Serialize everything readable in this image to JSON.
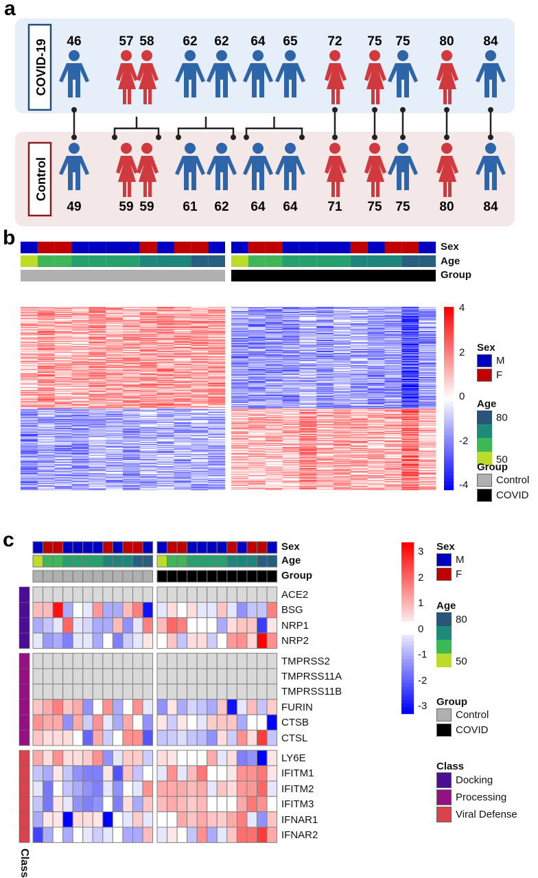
{
  "panel_labels": {
    "a": "a",
    "b": "b",
    "c": "c"
  },
  "panel_a": {
    "covid_label": "COVID-19",
    "control_label": "Control",
    "colors": {
      "male": "#2e64a8",
      "female": "#d03a3e",
      "covid_box": "#e6eef9",
      "control_box": "#f3e7e7",
      "covid_border": "#1f4e79",
      "control_border": "#8b1a1a"
    },
    "covid": [
      {
        "age": "46",
        "sex": "M"
      },
      {
        "age": "57",
        "sex": "F"
      },
      {
        "age": "58",
        "sex": "F"
      },
      {
        "age": "62",
        "sex": "M"
      },
      {
        "age": "62",
        "sex": "M"
      },
      {
        "age": "64",
        "sex": "M"
      },
      {
        "age": "65",
        "sex": "M"
      },
      {
        "age": "72",
        "sex": "F"
      },
      {
        "age": "75",
        "sex": "F"
      },
      {
        "age": "75",
        "sex": "M"
      },
      {
        "age": "80",
        "sex": "F"
      },
      {
        "age": "84",
        "sex": "M"
      }
    ],
    "control": [
      {
        "age": "49",
        "sex": "M"
      },
      {
        "age": "59",
        "sex": "F"
      },
      {
        "age": "59",
        "sex": "F"
      },
      {
        "age": "61",
        "sex": "M"
      },
      {
        "age": "62",
        "sex": "M"
      },
      {
        "age": "64",
        "sex": "M"
      },
      {
        "age": "64",
        "sex": "M"
      },
      {
        "age": "71",
        "sex": "F"
      },
      {
        "age": "75",
        "sex": "F"
      },
      {
        "age": "75",
        "sex": "M"
      },
      {
        "age": "80",
        "sex": "F"
      },
      {
        "age": "84",
        "sex": "M"
      }
    ]
  },
  "annotations": {
    "sex": "Sex",
    "age": "Age",
    "group": "Group",
    "class": "Class"
  },
  "legend": {
    "sex_title": "Sex",
    "sex_items": [
      {
        "label": "M",
        "color": "#0000c0"
      },
      {
        "label": "F",
        "color": "#c00000"
      }
    ],
    "age_title": "Age",
    "age_ticks": [
      "80",
      "50"
    ],
    "age_colors": [
      "#2b5578",
      "#1f8a7a",
      "#3cb957",
      "#bddb2a"
    ],
    "group_title": "Group",
    "group_items": [
      {
        "label": "Control",
        "color": "#b0b0b0"
      },
      {
        "label": "COVID",
        "color": "#000000"
      }
    ],
    "class_title": "Class",
    "class_items": [
      {
        "label": "Docking",
        "color": "#4b0c96"
      },
      {
        "label": "Processing",
        "color": "#951181"
      },
      {
        "label": "Viral Defense",
        "color": "#d9434d"
      }
    ]
  },
  "chart_data": [
    {
      "panel": "b",
      "type": "heatmap",
      "colorbar": {
        "ticks": [
          "4",
          "2",
          "0",
          "-2",
          "-4"
        ],
        "range": [
          -4,
          4
        ],
        "low": "#0000ff",
        "mid": "#ffffff",
        "high": "#ff0000"
      },
      "groups": [
        "Control",
        "COVID"
      ]
    },
    {
      "panel": "c",
      "type": "heatmap",
      "colorbar": {
        "ticks": [
          "3",
          "2",
          "1",
          "0",
          "-1",
          "-2",
          "-3"
        ],
        "range": [
          -3,
          3
        ]
      },
      "na_color": "#d9d9d9",
      "columns": {
        "control": {
          "sex": [
            "M",
            "F",
            "F",
            "M",
            "M",
            "M",
            "M",
            "F",
            "M",
            "F",
            "F",
            "M"
          ],
          "age": [
            49,
            59,
            59,
            61,
            62,
            64,
            64,
            71,
            75,
            75,
            80,
            84
          ]
        },
        "covid": {
          "sex": [
            "M",
            "F",
            "F",
            "M",
            "M",
            "M",
            "M",
            "F",
            "M",
            "F",
            "F",
            "M"
          ],
          "age": [
            46,
            57,
            58,
            62,
            62,
            64,
            65,
            72,
            75,
            75,
            80,
            84
          ]
        }
      },
      "rows": [
        {
          "gene": "ACE2",
          "class": "Docking",
          "control": null,
          "covid": null
        },
        {
          "gene": "BSG",
          "class": "Docking",
          "control": [
            0.8,
            0.8,
            2.8,
            -1,
            0,
            -0.3,
            1.2,
            -1,
            -1,
            0.8,
            1.5,
            -2.8
          ],
          "covid": [
            -0.3,
            0.4,
            0,
            0.4,
            -0.3,
            -0.3,
            0.7,
            -0.3,
            -1.3,
            -0.7,
            -0.7,
            1.5
          ]
        },
        {
          "gene": "NRP1",
          "class": "Docking",
          "control": [
            -1,
            -0.7,
            -0.3,
            1.8,
            -0.3,
            -0.5,
            -1,
            -1,
            0.8,
            -1.3,
            -0.3,
            1.5
          ],
          "covid": [
            0.8,
            1.8,
            1.5,
            0,
            0,
            0,
            -1,
            0.4,
            0.7,
            0.7,
            -2.3,
            0.3
          ]
        },
        {
          "gene": "NRP2",
          "class": "Docking",
          "control": [
            -0.3,
            -1.2,
            -1,
            -1.5,
            -0.3,
            -0.3,
            -1,
            0,
            -1.5,
            -0.6,
            -0.3,
            0.3
          ],
          "covid": [
            0,
            0.7,
            -0.7,
            0.4,
            0.4,
            -0.6,
            0,
            1.2,
            1.3,
            0.5,
            3,
            1.3
          ]
        },
        {
          "gene": "TMPRSS2",
          "class": "Processing",
          "control": null,
          "covid": null
        },
        {
          "gene": "TMPRSS11A",
          "class": "Processing",
          "control": null,
          "covid": null
        },
        {
          "gene": "TMPRSS11B",
          "class": "Processing",
          "control": null,
          "covid": null
        },
        {
          "gene": "FURIN",
          "class": "Processing",
          "control": [
            0.7,
            1,
            1.5,
            0.7,
            1,
            -1.3,
            0,
            1.3,
            -1,
            0,
            1.3,
            -0.3
          ],
          "covid": [
            -1.3,
            0.3,
            -1,
            -0.5,
            -0.7,
            -1,
            0.7,
            -2.8,
            -0.3,
            0.8,
            -0.7,
            0.6
          ]
        },
        {
          "gene": "CTSB",
          "class": "Processing",
          "control": [
            1.3,
            1,
            1,
            -1.3,
            1,
            -0.6,
            1.3,
            -0.3,
            -1,
            1,
            0,
            -1.3
          ],
          "covid": [
            0.3,
            -0.6,
            0.3,
            0,
            -0.3,
            0.6,
            0.7,
            0.7,
            -1,
            0,
            0,
            -3
          ]
        },
        {
          "gene": "CTSL",
          "class": "Processing",
          "control": [
            0.7,
            0.4,
            0.4,
            0.4,
            0,
            -1.8,
            1,
            -0.6,
            0,
            1.3,
            1.3,
            -2
          ],
          "covid": [
            -0.7,
            -0.6,
            -0.4,
            -0.7,
            -0.8,
            -1.3,
            0.4,
            -0.6,
            1.3,
            0.4,
            2.3,
            -0.7
          ]
        },
        {
          "gene": "LY6E",
          "class": "Viral Defense",
          "control": [
            1,
            0.4,
            1.3,
            0.4,
            0.4,
            0.6,
            1.3,
            -1.3,
            -0.3,
            0.6,
            0.6,
            -0.6
          ],
          "covid": [
            0.4,
            0.3,
            0,
            0,
            0,
            1,
            -0.3,
            0.4,
            -1.5,
            -1.3,
            -3,
            0.3
          ]
        },
        {
          "gene": "IFITM1",
          "class": "Viral Defense",
          "control": [
            -0.7,
            -1,
            0.3,
            -0.7,
            -1.3,
            -1.5,
            -1.5,
            0.3,
            -2,
            0.7,
            -0.7,
            0
          ],
          "covid": [
            -0.3,
            1.3,
            -0.3,
            0.8,
            1.6,
            0,
            0,
            0.3,
            1.3,
            1.3,
            1.6,
            0.3
          ]
        },
        {
          "gene": "IFITM2",
          "class": "Viral Defense",
          "control": [
            -0.3,
            -1.6,
            0,
            -0.7,
            -1,
            -1.3,
            -1.5,
            -0.3,
            -1.3,
            0,
            -0.3,
            1.3
          ],
          "covid": [
            1,
            1,
            1,
            0.8,
            1,
            -0.3,
            0.7,
            0.4,
            1.2,
            1.2,
            1.8,
            -0.3
          ]
        },
        {
          "gene": "IFITM3",
          "class": "Viral Defense",
          "control": [
            -0.7,
            -1.6,
            0.3,
            -0.3,
            -1.3,
            -1.5,
            -1.3,
            0,
            -1.5,
            0.4,
            -1,
            0.7
          ],
          "covid": [
            0.8,
            1,
            0.8,
            0.6,
            0.8,
            0,
            0,
            0,
            1,
            1.6,
            1.3,
            0
          ]
        },
        {
          "gene": "IFNAR1",
          "class": "Viral Defense",
          "control": [
            -1,
            0.3,
            0.3,
            -3,
            0.4,
            0.4,
            0.3,
            -3,
            0,
            -0.3,
            0.6,
            -0.3
          ],
          "covid": [
            0,
            0,
            1,
            0.7,
            1,
            0.7,
            0.6,
            1,
            1.5,
            -0.3,
            -1.3,
            0.7
          ]
        },
        {
          "gene": "IFNAR2",
          "class": "Viral Defense",
          "control": [
            -2.2,
            -1,
            0,
            -1,
            0,
            -0.3,
            -0.6,
            -0.3,
            0,
            -1,
            -1,
            0.8
          ],
          "covid": [
            -0.3,
            0.3,
            0,
            -0.7,
            1.3,
            -1,
            -0.3,
            0.7,
            1.7,
            1.7,
            2.3,
            1
          ]
        }
      ]
    }
  ]
}
